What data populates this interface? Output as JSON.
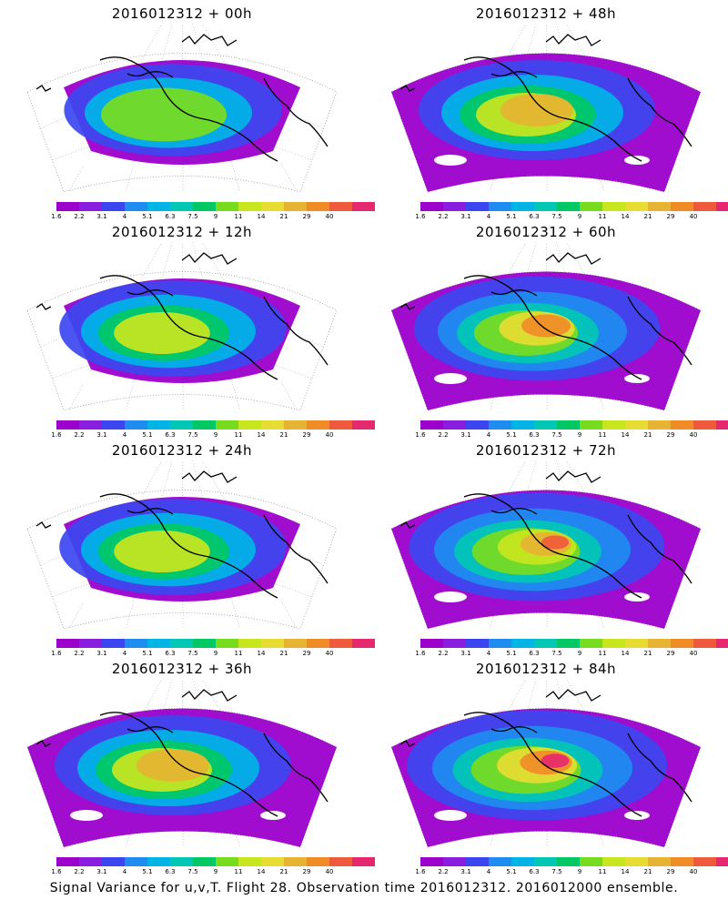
{
  "panels": [
    {
      "title": "2016012312 + 00h"
    },
    {
      "title": "2016012312 + 48h"
    },
    {
      "title": "2016012312 + 12h"
    },
    {
      "title": "2016012312 + 60h"
    },
    {
      "title": "2016012312 + 24h"
    },
    {
      "title": "2016012312 + 72h"
    },
    {
      "title": "2016012312 + 36h"
    },
    {
      "title": "2016012312 + 84h"
    }
  ],
  "colorbar": {
    "labels": [
      "1.6",
      "2.2",
      "3.1",
      "4",
      "5.1",
      "6.3",
      "7.5",
      "9",
      "11",
      "14",
      "21",
      "29",
      "40"
    ],
    "colors": [
      "#9b00cc",
      "#8a1ee0",
      "#3c46f0",
      "#1e8cf0",
      "#00b4e6",
      "#00c8b4",
      "#00c864",
      "#78dc1e",
      "#c8e61e",
      "#e6dc32",
      "#e6b432",
      "#f08c28",
      "#f05a3c",
      "#e6286e"
    ]
  },
  "caption": "Signal Variance for u,v,T. Flight 28. Observation time 2016012312. 2016012000 ensemble."
}
